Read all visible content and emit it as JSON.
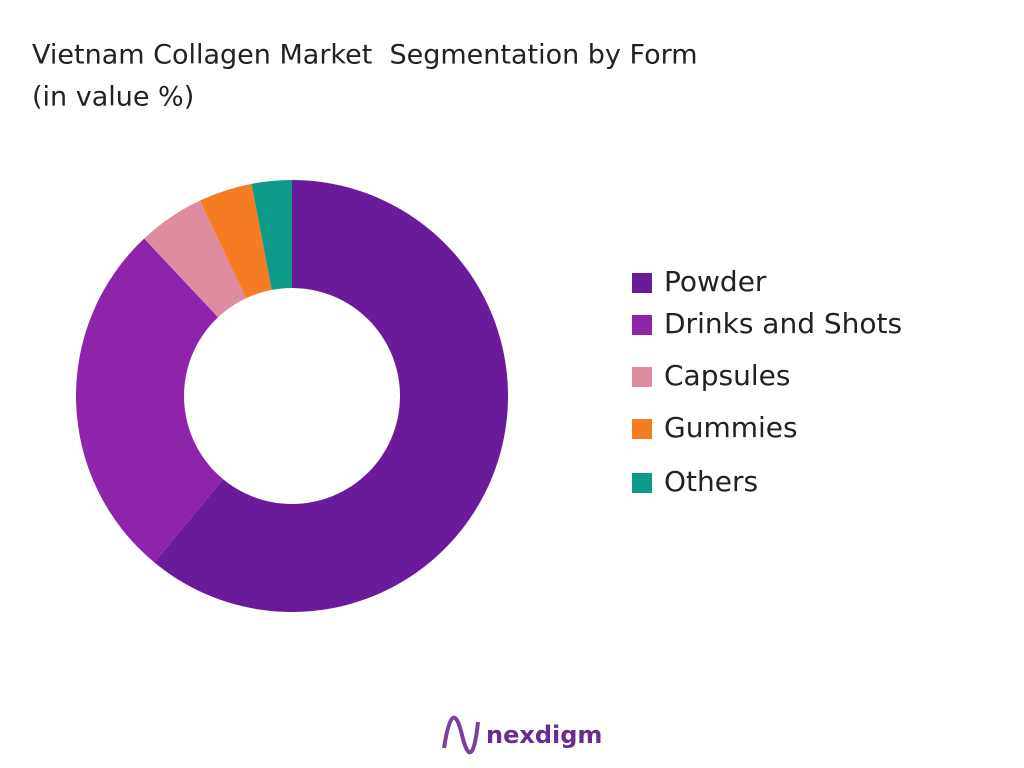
{
  "chart_data": {
    "type": "donut",
    "title": "Vietnam Collagen Market  Segmentation by Form",
    "subtitle": "(in value %)",
    "categories": [
      "Powder",
      "Drinks and Shots",
      "Capsules",
      "Gummies",
      "Others"
    ],
    "values": [
      61,
      27,
      5,
      4,
      3
    ],
    "colors": [
      "#6a1b9a",
      "#8e24aa",
      "#e08ca0",
      "#f57c20",
      "#0e9a8a"
    ],
    "legend": "right"
  },
  "brand": "nexdigm"
}
